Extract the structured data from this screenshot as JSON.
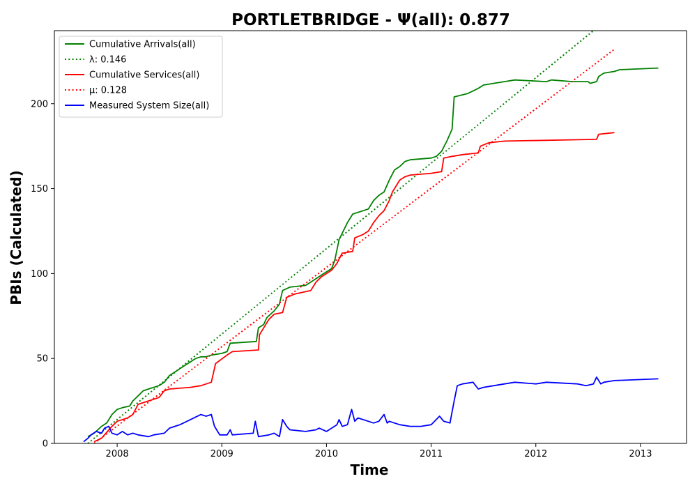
{
  "chart_data": {
    "type": "line",
    "title": "PORTLETBRIDGE -  Ψ(all): 0.877",
    "xlabel": "Time",
    "ylabel": "PBIs (Calculated)",
    "xlim": [
      2007.4,
      2013.44
    ],
    "ylim": [
      0,
      243
    ],
    "x_ticks": [
      2008,
      2009,
      2010,
      2011,
      2012,
      2013
    ],
    "x_tick_labels": [
      "2008",
      "2009",
      "2010",
      "2011",
      "2012",
      "2013"
    ],
    "y_ticks": [
      0,
      50,
      100,
      150,
      200
    ],
    "y_tick_labels": [
      "0",
      "50",
      "100",
      "150",
      "200"
    ],
    "grid": false,
    "legend_position": "top-left",
    "series": [
      {
        "name": "Cumulative Arrivals(all)",
        "color": "#008000",
        "style": "solid",
        "points": [
          [
            2007.72,
            4
          ],
          [
            2007.78,
            6
          ],
          [
            2007.85,
            10
          ],
          [
            2007.9,
            12
          ],
          [
            2007.95,
            17
          ],
          [
            2008.0,
            20
          ],
          [
            2008.05,
            21
          ],
          [
            2008.12,
            22
          ],
          [
            2008.15,
            25
          ],
          [
            2008.2,
            28
          ],
          [
            2008.25,
            31
          ],
          [
            2008.3,
            32
          ],
          [
            2008.4,
            34
          ],
          [
            2008.45,
            36
          ],
          [
            2008.5,
            40
          ],
          [
            2008.55,
            42
          ],
          [
            2008.6,
            44
          ],
          [
            2008.65,
            46
          ],
          [
            2008.7,
            48
          ],
          [
            2008.75,
            50
          ],
          [
            2008.8,
            51
          ],
          [
            2008.85,
            51
          ],
          [
            2008.9,
            52
          ],
          [
            2009.0,
            53
          ],
          [
            2009.05,
            54
          ],
          [
            2009.08,
            59
          ],
          [
            2009.33,
            60
          ],
          [
            2009.35,
            68
          ],
          [
            2009.4,
            70
          ],
          [
            2009.43,
            74
          ],
          [
            2009.5,
            78
          ],
          [
            2009.55,
            82
          ],
          [
            2009.58,
            90
          ],
          [
            2009.65,
            92
          ],
          [
            2009.8,
            93
          ],
          [
            2009.85,
            95
          ],
          [
            2009.9,
            97
          ],
          [
            2009.95,
            99
          ],
          [
            2010.0,
            101
          ],
          [
            2010.05,
            103
          ],
          [
            2010.08,
            108
          ],
          [
            2010.12,
            120
          ],
          [
            2010.16,
            125
          ],
          [
            2010.2,
            130
          ],
          [
            2010.25,
            135
          ],
          [
            2010.4,
            138
          ],
          [
            2010.45,
            143
          ],
          [
            2010.5,
            146
          ],
          [
            2010.55,
            148
          ],
          [
            2010.6,
            155
          ],
          [
            2010.65,
            161
          ],
          [
            2010.7,
            163
          ],
          [
            2010.75,
            166
          ],
          [
            2010.8,
            167
          ],
          [
            2011.0,
            168
          ],
          [
            2011.05,
            169
          ],
          [
            2011.1,
            172
          ],
          [
            2011.15,
            178
          ],
          [
            2011.2,
            185
          ],
          [
            2011.22,
            204
          ],
          [
            2011.35,
            206
          ],
          [
            2011.45,
            209
          ],
          [
            2011.5,
            211
          ],
          [
            2011.6,
            212
          ],
          [
            2011.7,
            213
          ],
          [
            2011.8,
            214
          ],
          [
            2012.1,
            213
          ],
          [
            2012.15,
            214
          ],
          [
            2012.35,
            213
          ],
          [
            2012.5,
            213
          ],
          [
            2012.52,
            212
          ],
          [
            2012.58,
            213
          ],
          [
            2012.6,
            216
          ],
          [
            2012.65,
            218
          ],
          [
            2012.75,
            219
          ],
          [
            2012.8,
            220
          ],
          [
            2013.17,
            221
          ]
        ]
      },
      {
        "name": "λ: 0.146",
        "color": "#008000",
        "style": "dotted",
        "points": [
          [
            2007.72,
            0
          ],
          [
            2012.55,
            243
          ]
        ]
      },
      {
        "name": "Cumulative Services(all)",
        "color": "#ff0000",
        "style": "solid",
        "points": [
          [
            2007.78,
            1
          ],
          [
            2007.85,
            3
          ],
          [
            2007.95,
            10
          ],
          [
            2008.0,
            13
          ],
          [
            2008.1,
            15
          ],
          [
            2008.15,
            17
          ],
          [
            2008.2,
            23
          ],
          [
            2008.3,
            25
          ],
          [
            2008.4,
            27
          ],
          [
            2008.45,
            31
          ],
          [
            2008.5,
            32
          ],
          [
            2008.7,
            33
          ],
          [
            2008.8,
            34
          ],
          [
            2008.9,
            36
          ],
          [
            2008.94,
            47
          ],
          [
            2009.05,
            52
          ],
          [
            2009.1,
            54
          ],
          [
            2009.35,
            55
          ],
          [
            2009.36,
            64
          ],
          [
            2009.4,
            68
          ],
          [
            2009.45,
            73
          ],
          [
            2009.5,
            76
          ],
          [
            2009.58,
            77
          ],
          [
            2009.62,
            86
          ],
          [
            2009.7,
            88
          ],
          [
            2009.85,
            90
          ],
          [
            2009.9,
            95
          ],
          [
            2009.95,
            98
          ],
          [
            2010.0,
            100
          ],
          [
            2010.05,
            102
          ],
          [
            2010.1,
            106
          ],
          [
            2010.15,
            112
          ],
          [
            2010.25,
            113
          ],
          [
            2010.27,
            121
          ],
          [
            2010.35,
            123
          ],
          [
            2010.4,
            125
          ],
          [
            2010.45,
            130
          ],
          [
            2010.5,
            134
          ],
          [
            2010.55,
            137
          ],
          [
            2010.6,
            143
          ],
          [
            2010.63,
            148
          ],
          [
            2010.7,
            155
          ],
          [
            2010.75,
            157
          ],
          [
            2010.8,
            158
          ],
          [
            2011.0,
            159
          ],
          [
            2011.1,
            160
          ],
          [
            2011.12,
            168
          ],
          [
            2011.2,
            169
          ],
          [
            2011.3,
            170
          ],
          [
            2011.45,
            171
          ],
          [
            2011.47,
            175
          ],
          [
            2011.55,
            177
          ],
          [
            2011.7,
            178
          ],
          [
            2012.58,
            179
          ],
          [
            2012.6,
            182
          ],
          [
            2012.75,
            183
          ]
        ]
      },
      {
        "name": "μ: 0.128",
        "color": "#ff0000",
        "style": "dotted",
        "points": [
          [
            2007.78,
            0
          ],
          [
            2012.75,
            232
          ]
        ]
      },
      {
        "name": "Measured System Size(all)",
        "color": "#0000ff",
        "style": "solid",
        "points": [
          [
            2007.68,
            1
          ],
          [
            2007.72,
            3
          ],
          [
            2007.75,
            5
          ],
          [
            2007.8,
            7
          ],
          [
            2007.85,
            6
          ],
          [
            2007.88,
            9
          ],
          [
            2007.92,
            10
          ],
          [
            2007.95,
            6
          ],
          [
            2008.0,
            5
          ],
          [
            2008.05,
            7
          ],
          [
            2008.1,
            5
          ],
          [
            2008.15,
            6
          ],
          [
            2008.2,
            5
          ],
          [
            2008.3,
            4
          ],
          [
            2008.35,
            5
          ],
          [
            2008.45,
            6
          ],
          [
            2008.5,
            9
          ],
          [
            2008.6,
            11
          ],
          [
            2008.7,
            14
          ],
          [
            2008.8,
            17
          ],
          [
            2008.85,
            16
          ],
          [
            2008.9,
            17
          ],
          [
            2008.93,
            10
          ],
          [
            2008.98,
            5
          ],
          [
            2009.05,
            5
          ],
          [
            2009.08,
            8
          ],
          [
            2009.1,
            5
          ],
          [
            2009.3,
            6
          ],
          [
            2009.32,
            13
          ],
          [
            2009.35,
            4
          ],
          [
            2009.45,
            5
          ],
          [
            2009.5,
            6
          ],
          [
            2009.55,
            4
          ],
          [
            2009.58,
            14
          ],
          [
            2009.62,
            10
          ],
          [
            2009.65,
            8
          ],
          [
            2009.8,
            7
          ],
          [
            2009.9,
            8
          ],
          [
            2009.93,
            9
          ],
          [
            2010.0,
            7
          ],
          [
            2010.05,
            9
          ],
          [
            2010.1,
            11
          ],
          [
            2010.12,
            14
          ],
          [
            2010.15,
            10
          ],
          [
            2010.2,
            11
          ],
          [
            2010.24,
            20
          ],
          [
            2010.27,
            13
          ],
          [
            2010.3,
            15
          ],
          [
            2010.4,
            13
          ],
          [
            2010.45,
            12
          ],
          [
            2010.5,
            13
          ],
          [
            2010.55,
            17
          ],
          [
            2010.58,
            12
          ],
          [
            2010.6,
            13
          ],
          [
            2010.65,
            12
          ],
          [
            2010.7,
            11
          ],
          [
            2010.8,
            10
          ],
          [
            2010.9,
            10
          ],
          [
            2011.0,
            11
          ],
          [
            2011.08,
            16
          ],
          [
            2011.12,
            13
          ],
          [
            2011.18,
            12
          ],
          [
            2011.22,
            25
          ],
          [
            2011.25,
            34
          ],
          [
            2011.3,
            35
          ],
          [
            2011.4,
            36
          ],
          [
            2011.45,
            32
          ],
          [
            2011.5,
            33
          ],
          [
            2011.6,
            34
          ],
          [
            2011.7,
            35
          ],
          [
            2011.8,
            36
          ],
          [
            2012.0,
            35
          ],
          [
            2012.1,
            36
          ],
          [
            2012.4,
            35
          ],
          [
            2012.48,
            34
          ],
          [
            2012.55,
            35
          ],
          [
            2012.58,
            39
          ],
          [
            2012.62,
            35
          ],
          [
            2012.65,
            36
          ],
          [
            2012.75,
            37
          ],
          [
            2013.17,
            38
          ]
        ]
      }
    ]
  }
}
